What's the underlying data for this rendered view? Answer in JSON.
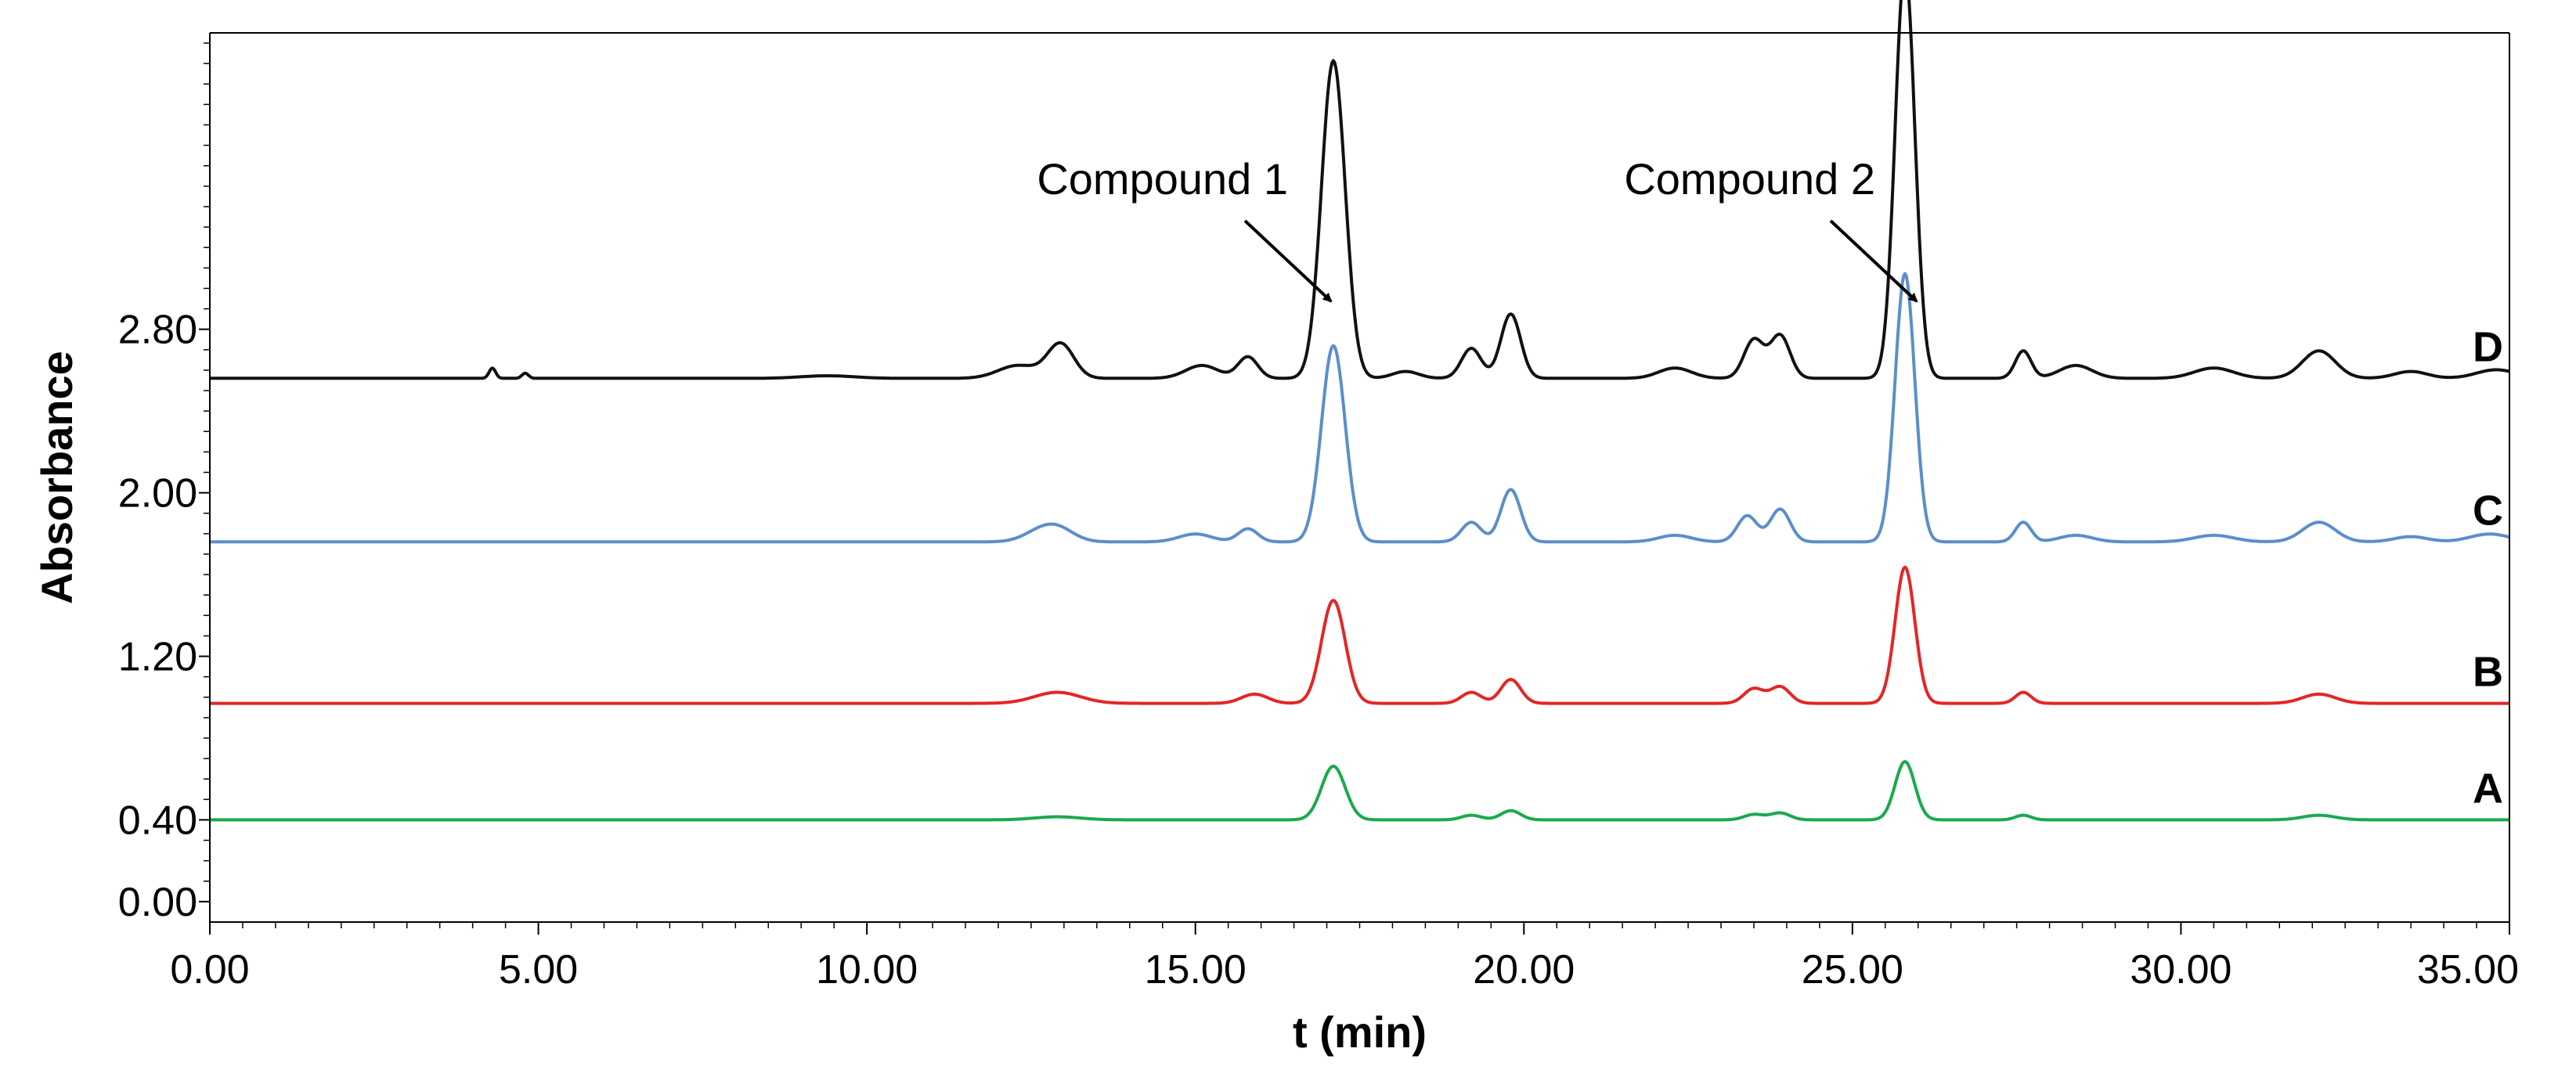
{
  "chart_data": {
    "type": "line",
    "xlabel": "t (min)",
    "ylabel": "Absorbance",
    "xlim": [
      0,
      35
    ],
    "x_ticks": [
      "0.00",
      "5.00",
      "10.00",
      "15.00",
      "20.00",
      "25.00",
      "30.00",
      "35.00"
    ],
    "y_ticks": [
      "0.00",
      "0.40",
      "1.20",
      "2.00",
      "2.80"
    ],
    "y_tick_values": [
      0.0,
      0.4,
      1.2,
      2.0,
      2.8
    ],
    "ylim": [
      -0.1,
      4.25
    ],
    "grid": false,
    "annotations": [
      {
        "text": "Compound 1",
        "x": 17.1
      },
      {
        "text": "Compound 2",
        "x": 25.8
      }
    ],
    "series": [
      {
        "name": "A",
        "color": "#1aaa4b",
        "baseline": 0.4,
        "scale": 0.075,
        "peaks": [
          [
            12.9,
            0.2,
            0.35
          ],
          [
            17.1,
            3.5,
            0.18
          ],
          [
            19.2,
            0.3,
            0.15
          ],
          [
            19.8,
            0.6,
            0.15
          ],
          [
            23.5,
            0.35,
            0.15
          ],
          [
            23.9,
            0.45,
            0.15
          ],
          [
            25.8,
            3.8,
            0.15
          ],
          [
            27.6,
            0.3,
            0.12
          ],
          [
            32.1,
            0.3,
            0.25
          ]
        ]
      },
      {
        "name": "B",
        "color": "#e32626",
        "baseline": 0.97,
        "scale": 0.18,
        "peaks": [
          [
            12.9,
            0.3,
            0.35
          ],
          [
            15.9,
            0.25,
            0.2
          ],
          [
            17.1,
            2.8,
            0.18
          ],
          [
            19.2,
            0.3,
            0.15
          ],
          [
            19.8,
            0.65,
            0.15
          ],
          [
            23.5,
            0.4,
            0.15
          ],
          [
            23.9,
            0.45,
            0.15
          ],
          [
            25.8,
            3.7,
            0.15
          ],
          [
            27.6,
            0.3,
            0.12
          ],
          [
            32.1,
            0.25,
            0.25
          ]
        ]
      },
      {
        "name": "C",
        "color": "#5b8ecb",
        "baseline": 1.76,
        "scale": 0.32,
        "peaks": [
          [
            12.6,
            0.12,
            0.25
          ],
          [
            12.9,
            0.2,
            0.25
          ],
          [
            15.0,
            0.12,
            0.25
          ],
          [
            15.8,
            0.2,
            0.15
          ],
          [
            17.1,
            3.0,
            0.18
          ],
          [
            19.2,
            0.3,
            0.15
          ],
          [
            19.8,
            0.8,
            0.15
          ],
          [
            22.3,
            0.1,
            0.25
          ],
          [
            23.4,
            0.4,
            0.15
          ],
          [
            23.9,
            0.5,
            0.15
          ],
          [
            25.8,
            4.1,
            0.15
          ],
          [
            27.6,
            0.3,
            0.12
          ],
          [
            28.4,
            0.1,
            0.25
          ],
          [
            30.5,
            0.1,
            0.3
          ],
          [
            32.1,
            0.3,
            0.25
          ],
          [
            33.5,
            0.08,
            0.25
          ],
          [
            34.7,
            0.12,
            0.3
          ]
        ]
      },
      {
        "name": "D",
        "color": "#111111",
        "baseline": 2.56,
        "scale": 0.42,
        "peaks": [
          [
            4.3,
            0.12,
            0.05
          ],
          [
            4.8,
            0.06,
            0.05
          ],
          [
            9.4,
            0.03,
            0.4
          ],
          [
            12.3,
            0.15,
            0.3
          ],
          [
            12.95,
            0.4,
            0.2
          ],
          [
            15.1,
            0.15,
            0.25
          ],
          [
            15.8,
            0.25,
            0.15
          ],
          [
            17.1,
            3.7,
            0.18
          ],
          [
            18.2,
            0.08,
            0.2
          ],
          [
            19.2,
            0.35,
            0.15
          ],
          [
            19.8,
            0.75,
            0.15
          ],
          [
            22.3,
            0.12,
            0.25
          ],
          [
            23.5,
            0.45,
            0.15
          ],
          [
            23.9,
            0.5,
            0.15
          ],
          [
            25.8,
            4.8,
            0.15
          ],
          [
            27.6,
            0.32,
            0.12
          ],
          [
            28.4,
            0.15,
            0.25
          ],
          [
            30.5,
            0.12,
            0.3
          ],
          [
            32.1,
            0.32,
            0.25
          ],
          [
            33.5,
            0.08,
            0.25
          ],
          [
            34.8,
            0.1,
            0.3
          ]
        ]
      }
    ]
  }
}
